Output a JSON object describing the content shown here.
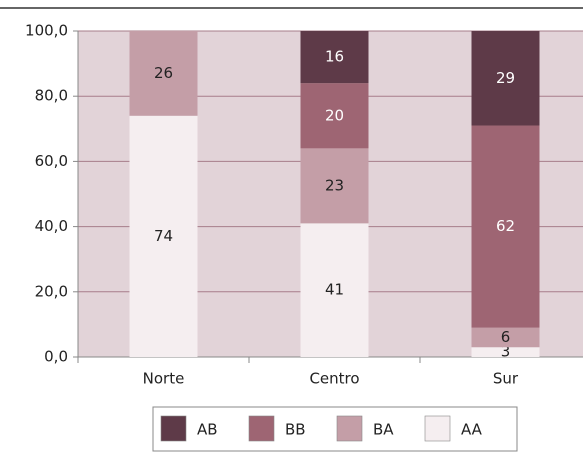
{
  "chart_data": {
    "type": "stacked_bar",
    "categories": [
      "Norte",
      "Centro",
      "Sur"
    ],
    "series": [
      {
        "name": "AA",
        "color": "#f5eef0",
        "label_color": "#222222",
        "values": [
          74,
          41,
          3
        ]
      },
      {
        "name": "BA",
        "color": "#c49ea7",
        "label_color": "#222222",
        "values": [
          26,
          23,
          6
        ]
      },
      {
        "name": "BB",
        "color": "#9e6573",
        "label_color": "#ffffff",
        "values": [
          null,
          20,
          62
        ]
      },
      {
        "name": "AB",
        "color": "#5e3a48",
        "label_color": "#ffffff",
        "values": [
          null,
          16,
          29
        ]
      }
    ],
    "ylim": [
      0,
      100
    ],
    "yticks": [
      {
        "value": 0,
        "label": "0,0"
      },
      {
        "value": 20,
        "label": "20,0"
      },
      {
        "value": 40,
        "label": "40,0"
      },
      {
        "value": 60,
        "label": "60,0"
      },
      {
        "value": 80,
        "label": "80,0"
      },
      {
        "value": 100,
        "label": "100,0"
      }
    ],
    "grid": true,
    "plot_background": "#e2d3d8",
    "legend": "bottom"
  }
}
